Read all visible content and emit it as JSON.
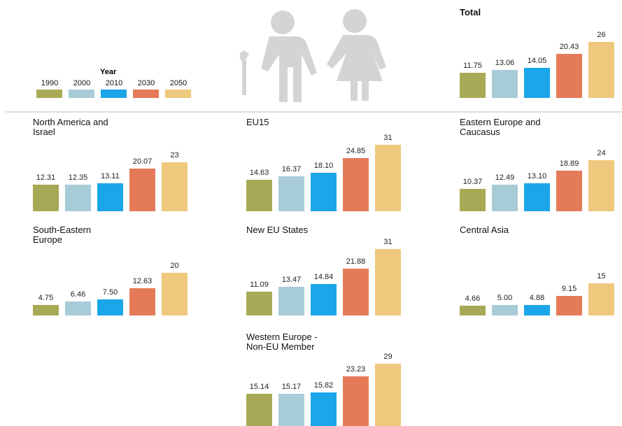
{
  "legend": {
    "title": "Year",
    "labels": [
      "1990",
      "2000",
      "2010",
      "2030",
      "2050"
    ],
    "colors": [
      "#a8a956",
      "#a8ccd7",
      "#1aa6e8",
      "#e57a59",
      "#efc87d"
    ]
  },
  "chart_data": [
    {
      "type": "bar",
      "title": "Total",
      "values": [
        11.75,
        13.06,
        14.05,
        20.43,
        26
      ],
      "value_labels": [
        "11.75",
        "13.06",
        "14.05",
        "20.43",
        "26"
      ]
    },
    {
      "type": "bar",
      "title": "North America and Israel",
      "values": [
        12.31,
        12.35,
        13.11,
        20.07,
        23
      ],
      "value_labels": [
        "12.31",
        "12.35",
        "13.11",
        "20.07",
        "23"
      ]
    },
    {
      "type": "bar",
      "title": "EU15",
      "values": [
        14.63,
        16.37,
        18.1,
        24.85,
        31
      ],
      "value_labels": [
        "14.63",
        "16.37",
        "18.10",
        "24.85",
        "31"
      ]
    },
    {
      "type": "bar",
      "title": "Eastern Europe and Caucasus",
      "values": [
        10.37,
        12.49,
        13.1,
        18.89,
        24
      ],
      "value_labels": [
        "10.37",
        "12.49",
        "13.10",
        "18.89",
        "24"
      ]
    },
    {
      "type": "bar",
      "title": "South-Eastern Europe",
      "values": [
        4.75,
        6.46,
        7.5,
        12.63,
        20
      ],
      "value_labels": [
        "4.75",
        "6.46",
        "7.50",
        "12.63",
        "20"
      ]
    },
    {
      "type": "bar",
      "title": "New EU States",
      "values": [
        11.09,
        13.47,
        14.84,
        21.88,
        31
      ],
      "value_labels": [
        "11.09",
        "13.47",
        "14.84",
        "21.88",
        "31"
      ]
    },
    {
      "type": "bar",
      "title": "Central Asia",
      "values": [
        4.66,
        5,
        4.88,
        9.15,
        15
      ],
      "value_labels": [
        "4.66",
        "5.00",
        "4.88",
        "9.15",
        "15"
      ]
    },
    {
      "type": "bar",
      "title": "Western Europe - Non-EU Member",
      "values": [
        15.14,
        15.17,
        15.82,
        23.23,
        29
      ],
      "value_labels": [
        "15.14",
        "15.17",
        "15.82",
        "23.23",
        "29"
      ]
    }
  ]
}
